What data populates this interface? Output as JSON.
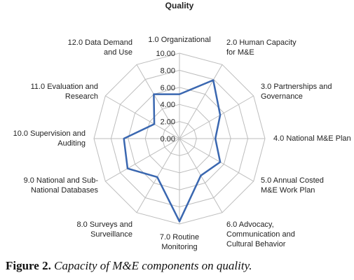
{
  "chart_data": {
    "type": "radar",
    "title": "Quality",
    "axes": [
      "1.0 Organizational",
      "2.0 Human Capacity for M&E",
      "3.0 Partnerships and Governance",
      "4.0 National M&E Plan",
      "5.0 Annual Costed M&E Work Plan",
      "6.0 Advocacy, Communication and Cultural Behavior",
      "7.0 Routine Monitoring",
      "8.0 Surveys and Surveillance",
      "9.0 National and Sub-National Databases",
      "10.0 Supervision and Auditing",
      "11.0 Evaluation and Research",
      "12.0 Data Demand and Use"
    ],
    "axis_label_lines": [
      [
        "1.0 Organizational"
      ],
      [
        "2.0 Human Capacity",
        "for M&E"
      ],
      [
        "3.0 Partnerships and",
        "Governance"
      ],
      [
        "4.0 National M&E Plan"
      ],
      [
        "5.0 Annual Costed",
        "M&E Work Plan"
      ],
      [
        "6.0 Advocacy,",
        "Communication and",
        "Cultural Behavior"
      ],
      [
        "7.0 Routine",
        "Monitoring"
      ],
      [
        "8.0 Surveys and",
        "Surveillance"
      ],
      [
        "9.0 National and Sub-",
        "National Databases"
      ],
      [
        "10.0 Supervision and",
        "Auditing"
      ],
      [
        "11.0 Evaluation and",
        "Research"
      ],
      [
        "12.0 Data Demand",
        "and Use"
      ]
    ],
    "series": [
      {
        "values": [
          5.2,
          7.9,
          5.5,
          4.2,
          5.5,
          5.0,
          9.7,
          5.2,
          7.0,
          6.5,
          3.4,
          6.0
        ]
      }
    ],
    "ticks": [
      "0.00",
      "2.00",
      "4.00",
      "6.00",
      "8.00",
      "10.00"
    ],
    "rlim": [
      0,
      10
    ],
    "series_color": "#3a67b0",
    "grid_color": "#bdbdbd",
    "grid": true,
    "legend": "none"
  },
  "caption": {
    "label": "Figure 2.",
    "text": "Capacity of M&E components on quality."
  }
}
